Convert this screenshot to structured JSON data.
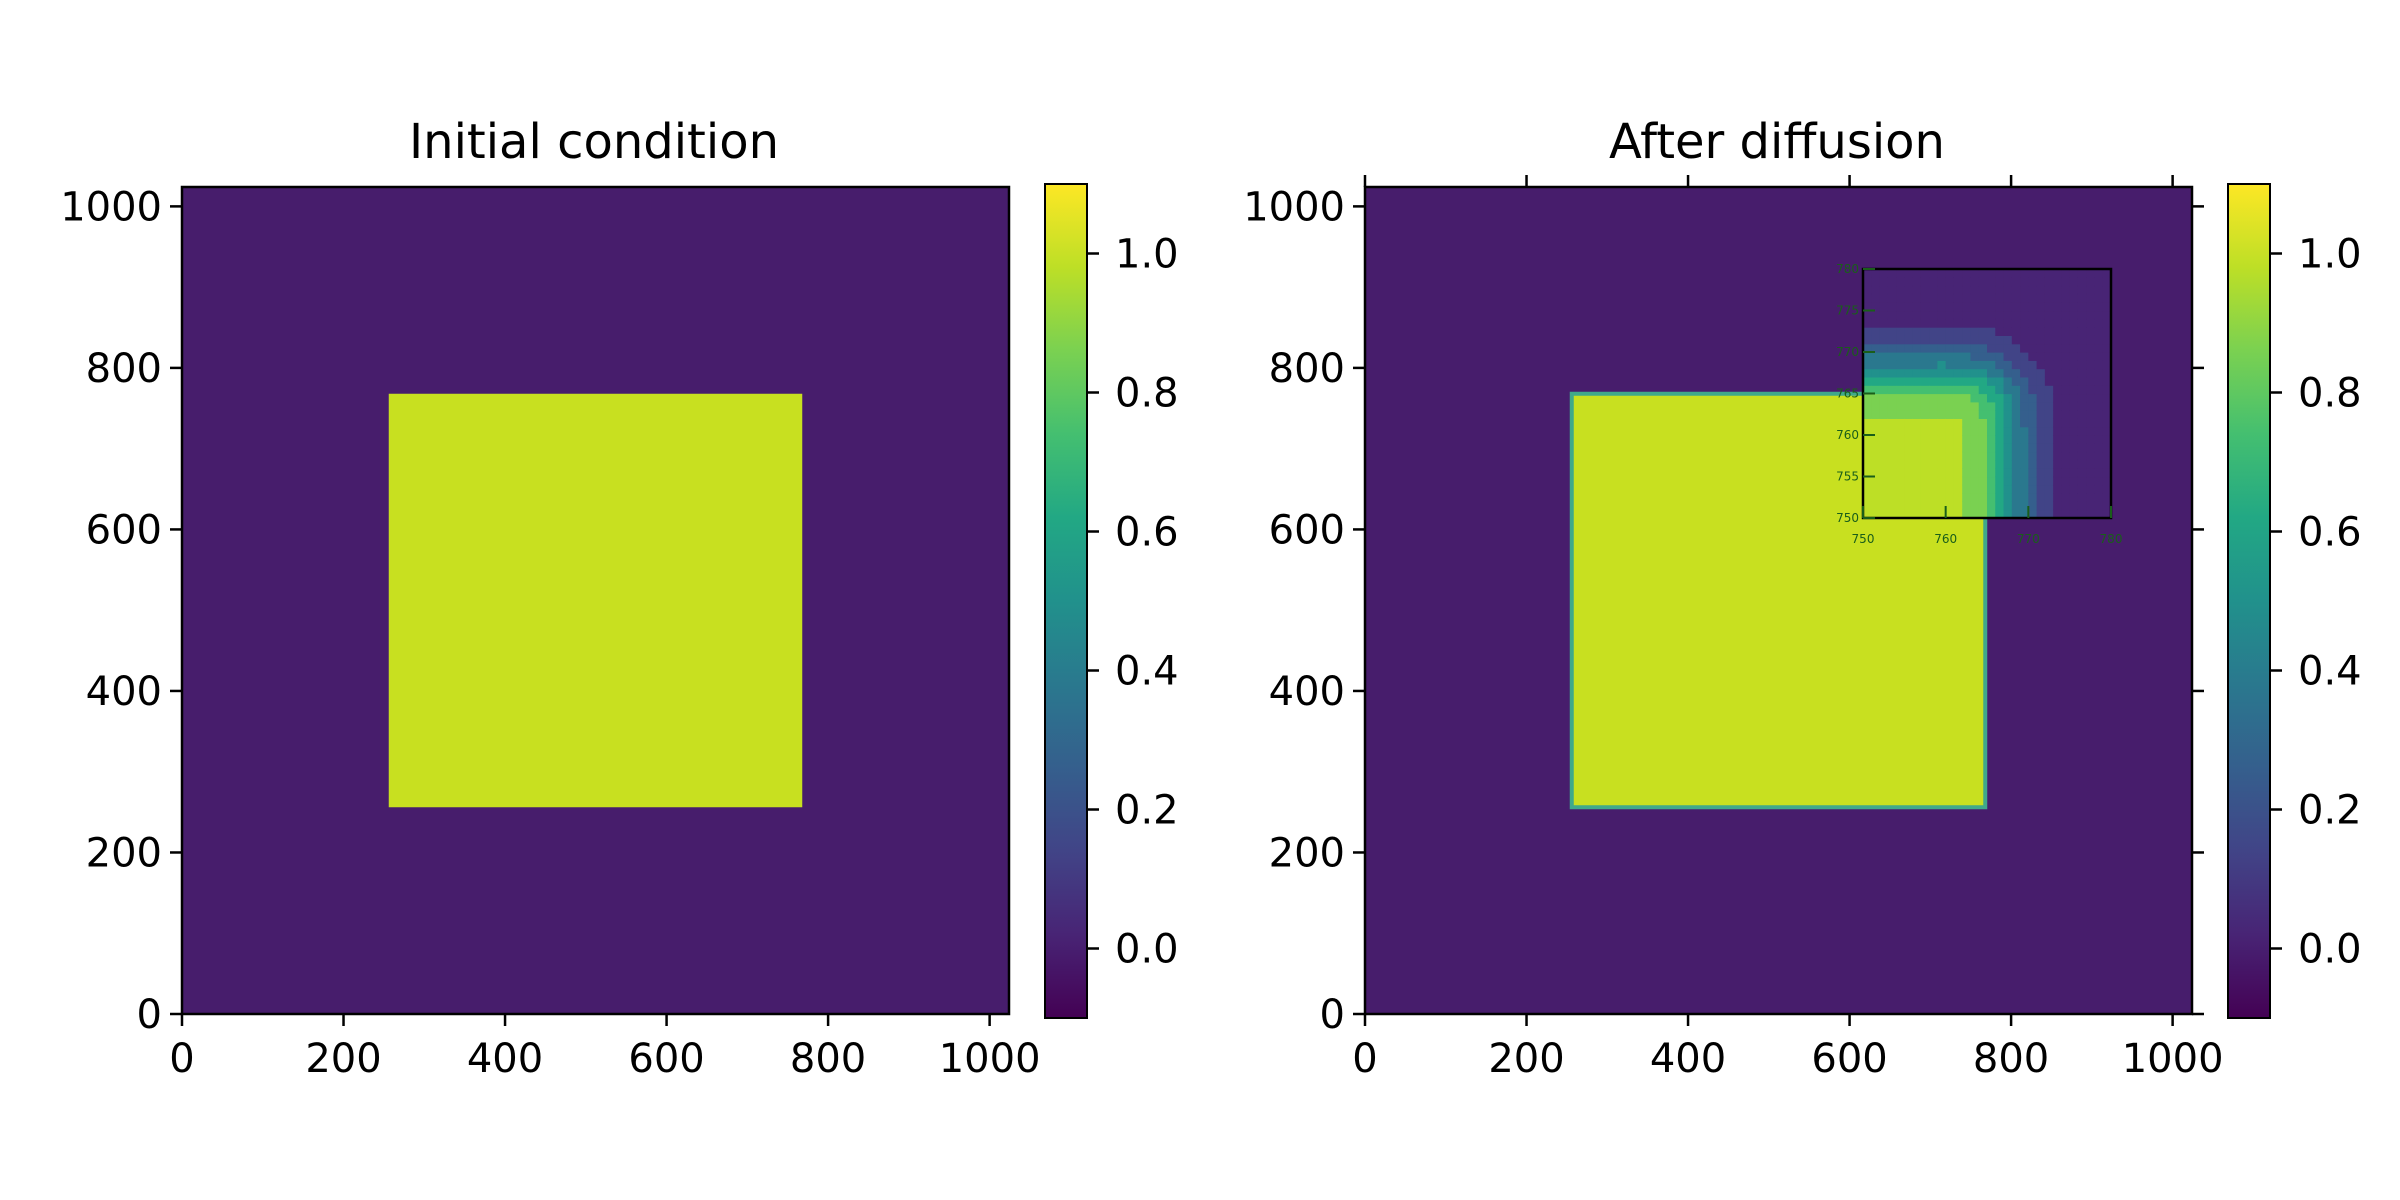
{
  "chart_data": [
    {
      "type": "heatmap",
      "title": "Initial condition",
      "xlim": [
        0,
        1024
      ],
      "ylim": [
        0,
        1024
      ],
      "xticks": [
        "0",
        "200",
        "400",
        "600",
        "800",
        "1000"
      ],
      "yticks": [
        "0",
        "200",
        "400",
        "600",
        "800",
        "1000"
      ],
      "background_value": 0.0,
      "square": {
        "x": [
          256,
          768
        ],
        "y": [
          256,
          768
        ],
        "value": 0.93
      },
      "colorbar": {
        "min": -0.1,
        "max": 1.1,
        "ticks": [
          "0.0",
          "0.2",
          "0.4",
          "0.6",
          "0.8",
          "1.0"
        ]
      },
      "colormap": "viridis"
    },
    {
      "type": "heatmap",
      "title": "After diffusion",
      "xlim": [
        0,
        1024
      ],
      "ylim": [
        0,
        1024
      ],
      "xticks": [
        "0",
        "200",
        "400",
        "600",
        "800",
        "1000"
      ],
      "yticks": [
        "0",
        "200",
        "400",
        "600",
        "800",
        "1000"
      ],
      "background_value": 0.0,
      "square": {
        "x": [
          256,
          768
        ],
        "y": [
          256,
          768
        ],
        "value": 0.93
      },
      "colorbar": {
        "min": -0.1,
        "max": 1.1,
        "ticks": [
          "0.0",
          "0.2",
          "0.4",
          "0.6",
          "0.8",
          "1.0"
        ]
      },
      "colormap": "viridis",
      "inset": {
        "xlim": [
          750,
          780
        ],
        "ylim": [
          750,
          780
        ],
        "xticks": [
          "750",
          "760",
          "770",
          "780"
        ],
        "yticks": [
          "750",
          "755",
          "760",
          "765",
          "770",
          "775",
          "780"
        ]
      }
    }
  ],
  "colors": {
    "low": "#440154",
    "background": "#471d6c",
    "square": "#c8e020",
    "high": "#fde725"
  }
}
